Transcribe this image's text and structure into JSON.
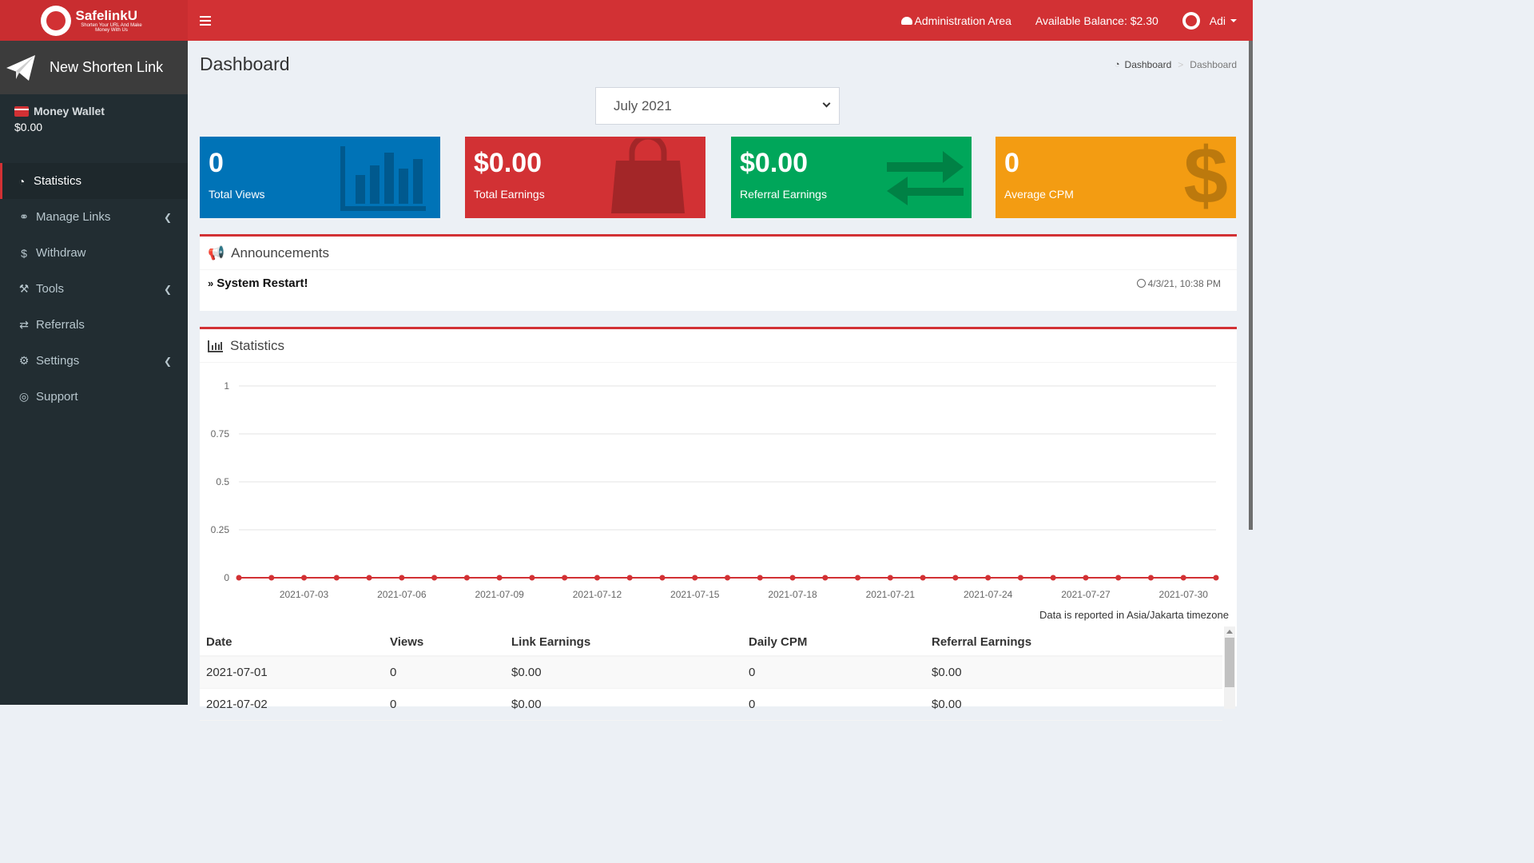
{
  "header": {
    "brand": "SafelinkU",
    "tagline": "Shorten Your URL And Make Money With Us",
    "admin_area": "Administration Area",
    "balance": "Available Balance: $2.30",
    "user": "Adi"
  },
  "sidebar": {
    "new_link": "New Shorten Link",
    "wallet_title": "Money Wallet",
    "wallet_value": "$0.00",
    "items": [
      {
        "label": "Statistics",
        "icon": "dashboard-icon",
        "active": true
      },
      {
        "label": "Manage Links",
        "icon": "link-icon",
        "has_children": true
      },
      {
        "label": "Withdraw",
        "icon": "dollar-icon"
      },
      {
        "label": "Tools",
        "icon": "wrench-icon",
        "has_children": true
      },
      {
        "label": "Referrals",
        "icon": "exchange-icon"
      },
      {
        "label": "Settings",
        "icon": "cogs-icon",
        "has_children": true
      },
      {
        "label": "Support",
        "icon": "life-ring-icon"
      }
    ]
  },
  "page": {
    "title": "Dashboard",
    "breadcrumb": [
      "Dashboard",
      "Dashboard"
    ],
    "month_selected": "July 2021"
  },
  "boxes": [
    {
      "value": "0",
      "label": "Total Views",
      "color": "#0073b7",
      "icon": "bar-chart-icon"
    },
    {
      "value": "$0.00",
      "label": "Total Earnings",
      "color": "#d23134",
      "icon": "shopping-bag-icon"
    },
    {
      "value": "$0.00",
      "label": "Referral Earnings",
      "color": "#00a65a",
      "icon": "exchange-icon"
    },
    {
      "value": "0",
      "label": "Average CPM",
      "color": "#f39c12",
      "icon": "dollar-icon"
    }
  ],
  "announcements": {
    "title": "Announcements",
    "items": [
      {
        "title": "System Restart!",
        "time": "4/3/21, 10:38 PM"
      }
    ]
  },
  "statistics": {
    "title": "Statistics",
    "timezone_note": "Data is reported in Asia/Jakarta timezone",
    "columns": [
      "Date",
      "Views",
      "Link Earnings",
      "Daily CPM",
      "Referral Earnings"
    ],
    "rows": [
      [
        "2021-07-01",
        "0",
        "$0.00",
        "0",
        "$0.00"
      ],
      [
        "2021-07-02",
        "0",
        "$0.00",
        "0",
        "$0.00"
      ]
    ]
  },
  "chart_data": {
    "type": "line",
    "x": [
      "2021-07-01",
      "2021-07-02",
      "2021-07-03",
      "2021-07-04",
      "2021-07-05",
      "2021-07-06",
      "2021-07-07",
      "2021-07-08",
      "2021-07-09",
      "2021-07-10",
      "2021-07-11",
      "2021-07-12",
      "2021-07-13",
      "2021-07-14",
      "2021-07-15",
      "2021-07-16",
      "2021-07-17",
      "2021-07-18",
      "2021-07-19",
      "2021-07-20",
      "2021-07-21",
      "2021-07-22",
      "2021-07-23",
      "2021-07-24",
      "2021-07-25",
      "2021-07-26",
      "2021-07-27",
      "2021-07-28",
      "2021-07-29",
      "2021-07-30",
      "2021-07-31"
    ],
    "series": [
      {
        "values": [
          0,
          0,
          0,
          0,
          0,
          0,
          0,
          0,
          0,
          0,
          0,
          0,
          0,
          0,
          0,
          0,
          0,
          0,
          0,
          0,
          0,
          0,
          0,
          0,
          0,
          0,
          0,
          0,
          0,
          0,
          0
        ],
        "color": "#d23134"
      }
    ],
    "x_tick_labels": [
      "2021-07-03",
      "2021-07-06",
      "2021-07-09",
      "2021-07-12",
      "2021-07-15",
      "2021-07-18",
      "2021-07-21",
      "2021-07-24",
      "2021-07-27",
      "2021-07-30"
    ],
    "y_ticks": [
      "0",
      "0.25",
      "0.5",
      "0.75",
      "1"
    ],
    "ylim": [
      0,
      1
    ],
    "grid": true
  }
}
